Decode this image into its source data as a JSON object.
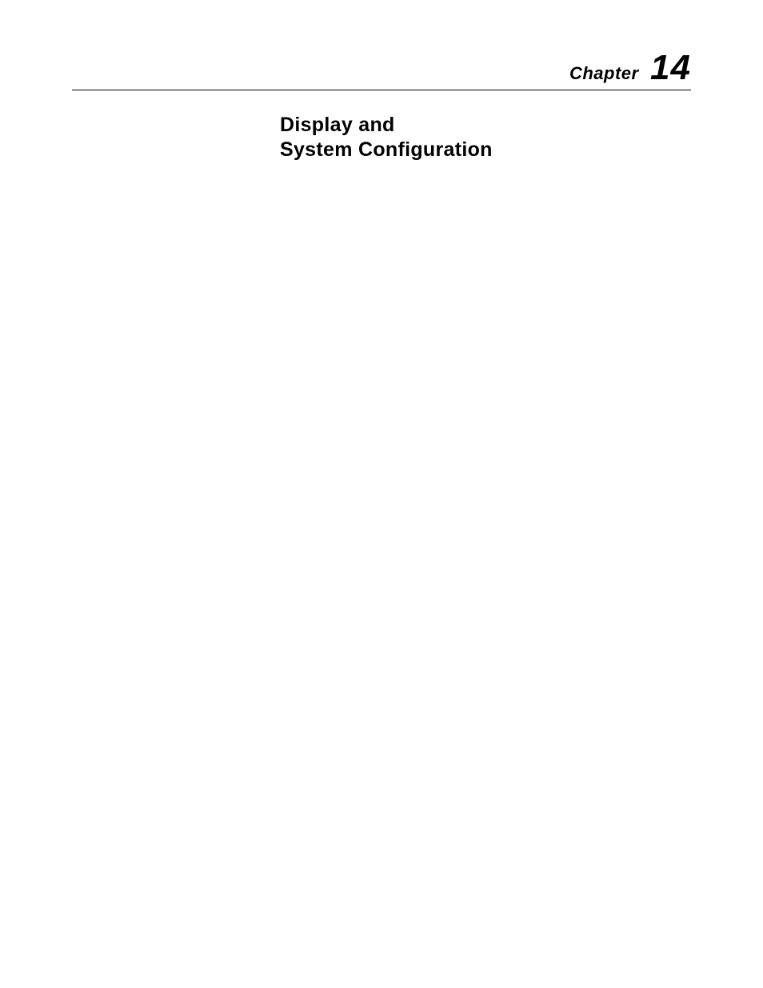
{
  "chapter": {
    "label": "Chapter",
    "number": "14",
    "title_line1": "Display and",
    "title_line2": "System Configuration"
  },
  "styles": {
    "background_color": "#ffffff",
    "text_color": "#000000",
    "rule_color": "#000000",
    "chapter_label_fontsize": 22,
    "chapter_number_fontsize": 44,
    "title_fontsize": 25
  }
}
